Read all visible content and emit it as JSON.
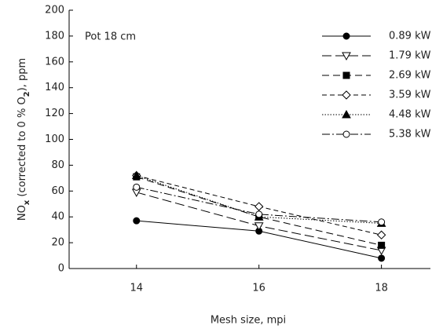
{
  "chart_data": {
    "type": "line",
    "annotation": "Pot 18 cm",
    "xlabel": "Mesh size, mpi",
    "ylabel_parts": [
      "NO",
      "x",
      " (corrected to 0 % O",
      "2",
      "), ppm"
    ],
    "x": [
      14,
      16,
      18
    ],
    "xlim": [
      12.9,
      18.8
    ],
    "xticks": [
      14,
      16,
      18
    ],
    "ylim": [
      0,
      200
    ],
    "yticks": [
      0,
      20,
      40,
      60,
      80,
      100,
      120,
      140,
      160,
      180,
      200
    ],
    "legend": "top-right",
    "series": [
      {
        "name": "0.89 kW",
        "color": "#000000",
        "marker": "circle",
        "filled": true,
        "dash": "none",
        "values": [
          37,
          29,
          8
        ]
      },
      {
        "name": "1.79 kW",
        "color": "#000000",
        "marker": "triangle-down",
        "filled": false,
        "dash": "12 5",
        "values": [
          59,
          33,
          14
        ]
      },
      {
        "name": "2.69 kW",
        "color": "#000000",
        "marker": "square",
        "filled": true,
        "dash": "9 5",
        "values": [
          71,
          40,
          18
        ]
      },
      {
        "name": "3.59 kW",
        "color": "#000000",
        "marker": "diamond",
        "filled": false,
        "dash": "6 4",
        "values": [
          72,
          48,
          26
        ]
      },
      {
        "name": "4.48 kW",
        "color": "#000000",
        "marker": "triangle-up",
        "filled": true,
        "dash": "1.5 2",
        "values": [
          72,
          40,
          35
        ]
      },
      {
        "name": "5.38 kW",
        "color": "#000000",
        "marker": "circle",
        "filled": false,
        "dash": "10 3 2 3",
        "values": [
          63,
          42,
          36
        ]
      }
    ]
  }
}
